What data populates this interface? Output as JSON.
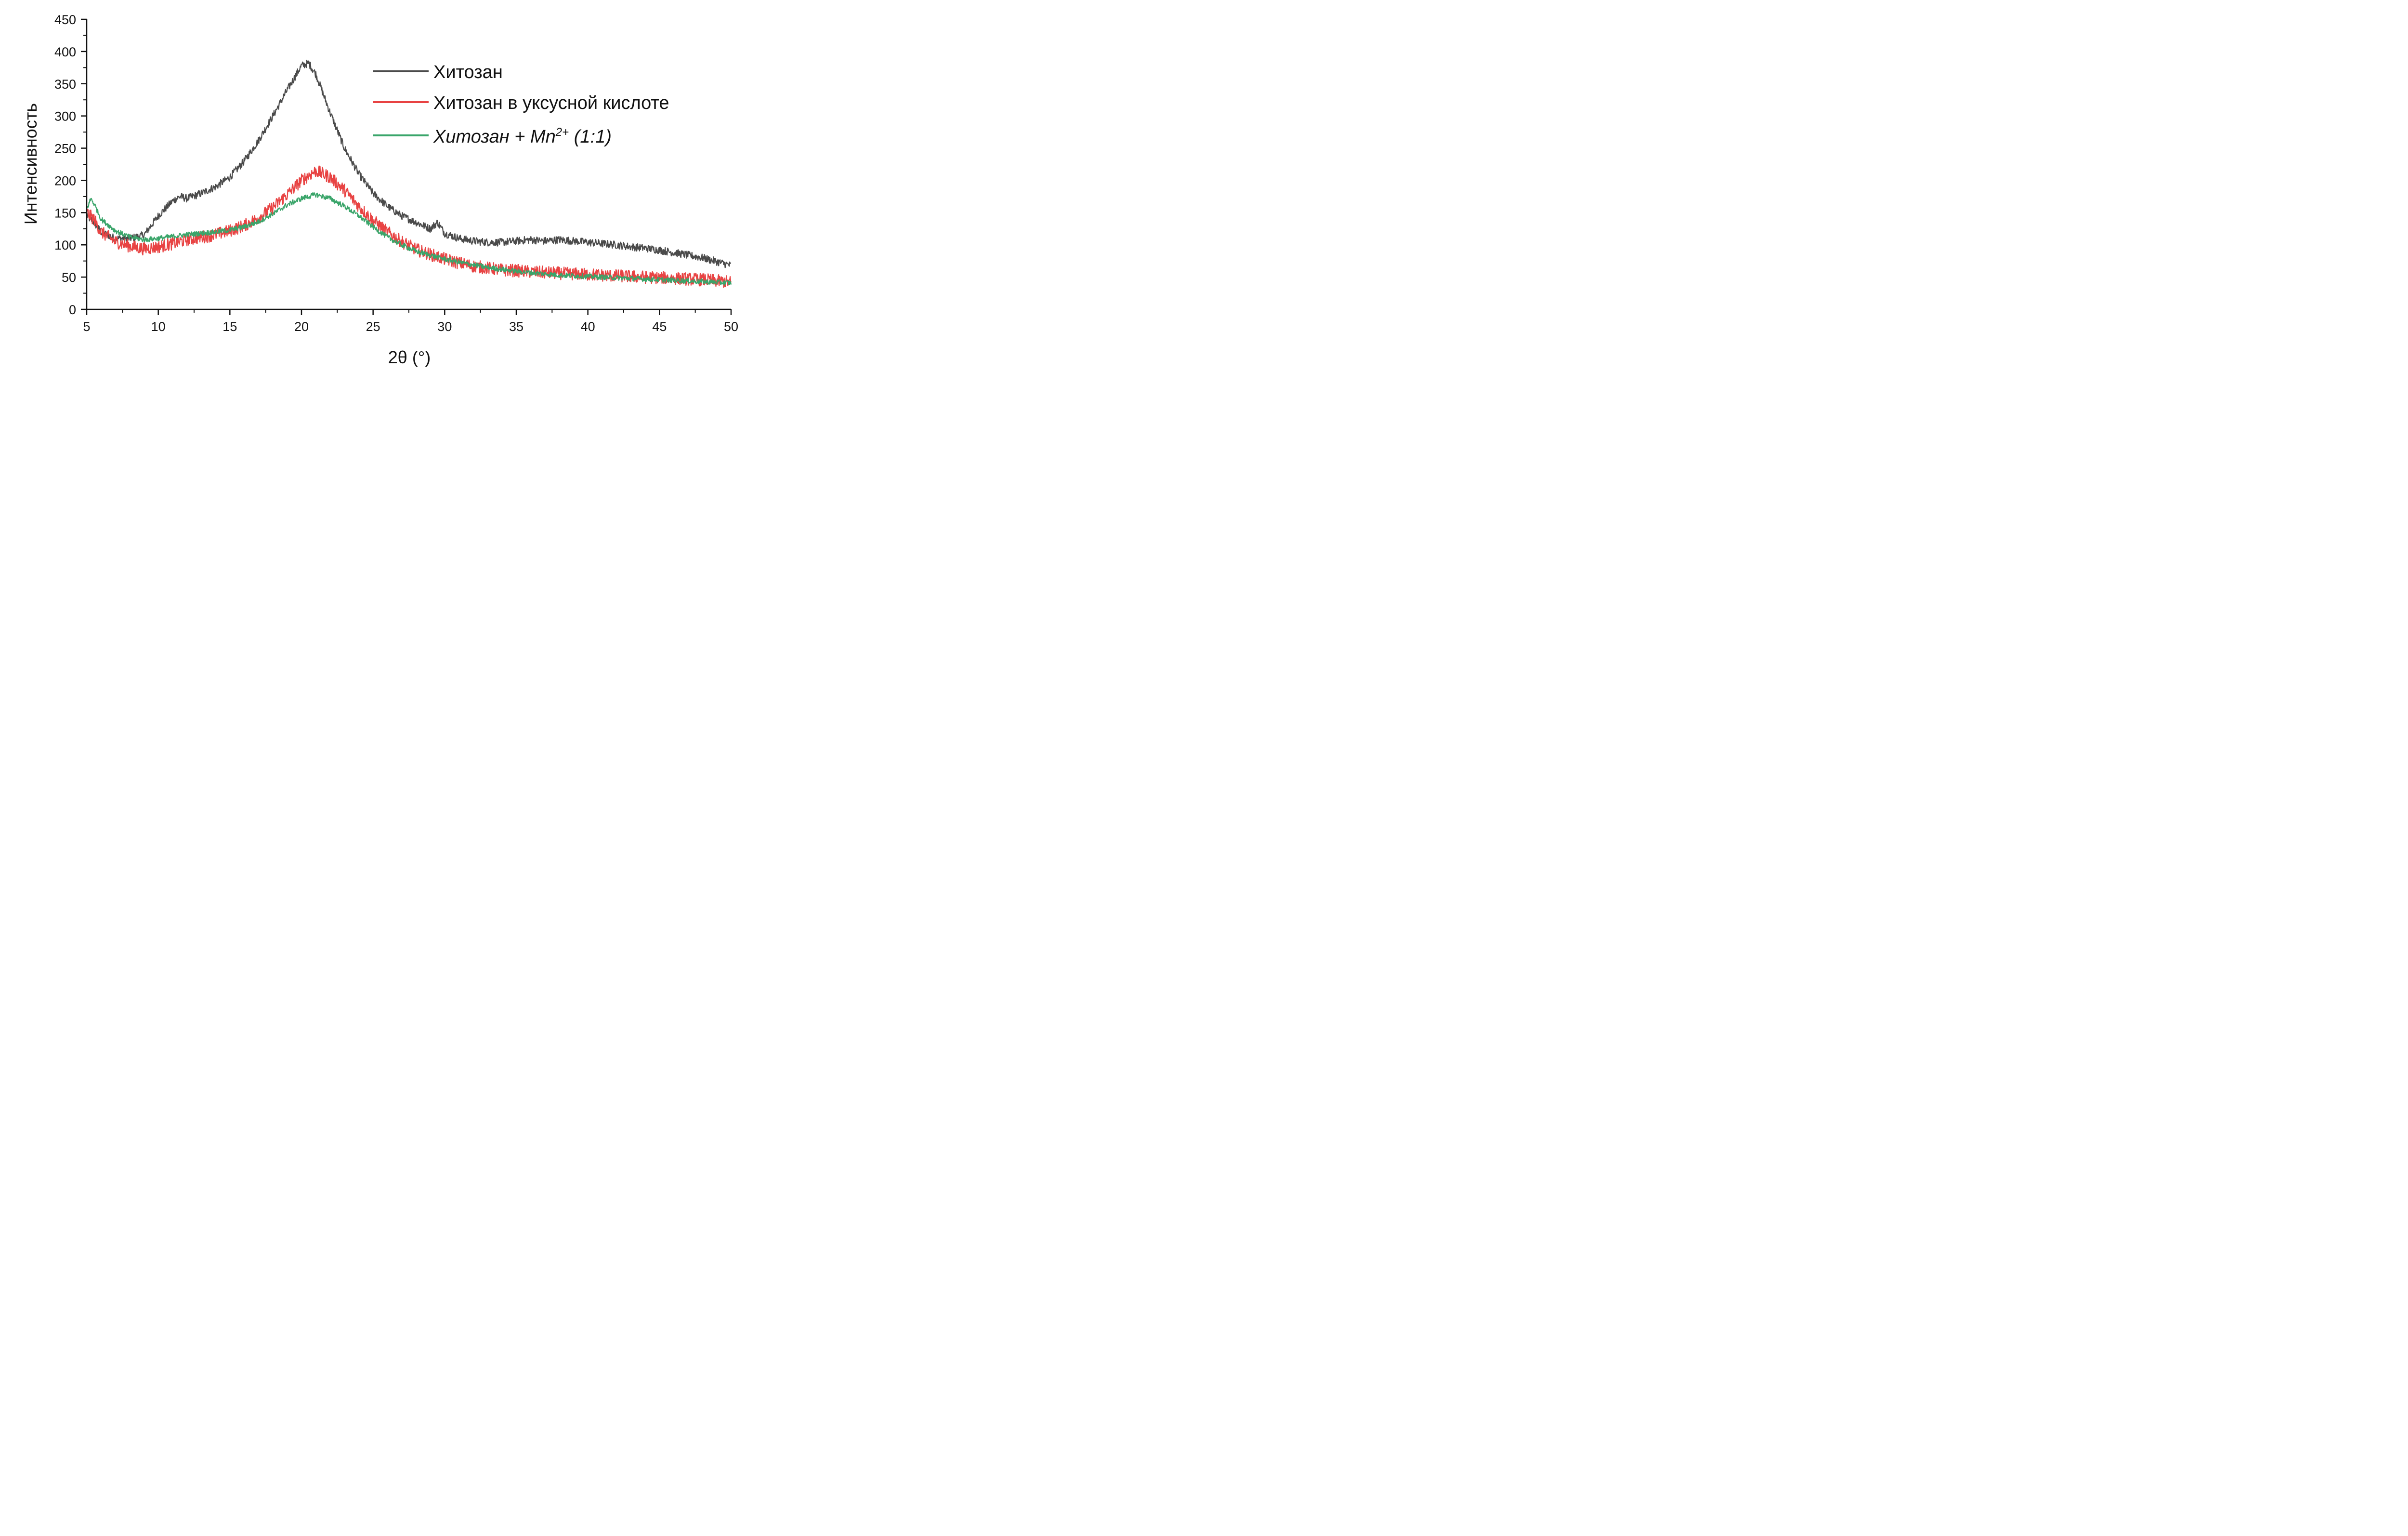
{
  "chart_data": {
    "type": "line",
    "xlabel": "2θ (°)",
    "ylabel": "Интенсивность",
    "xlim": [
      5,
      50
    ],
    "ylim": [
      0,
      450
    ],
    "xticks": [
      "5",
      "10",
      "15",
      "20",
      "25",
      "30",
      "35",
      "40",
      "45",
      "50"
    ],
    "yticks": [
      "0",
      "50",
      "100",
      "150",
      "200",
      "250",
      "300",
      "350",
      "400",
      "450"
    ],
    "grid": false,
    "legend_placement": "top-right",
    "series": [
      {
        "name": "Хитозан",
        "color": "#4a4a4a",
        "noise": 6,
        "x": [
          5,
          5.5,
          6,
          7,
          8,
          9,
          10,
          11,
          11.5,
          12,
          13,
          14,
          15,
          16,
          17,
          18,
          19,
          20,
          20.5,
          21,
          22,
          23,
          24,
          25,
          26,
          27,
          28,
          29,
          29.5,
          30,
          31,
          32,
          33,
          34,
          35,
          36,
          37,
          38,
          39,
          40,
          41,
          42,
          43,
          44,
          45,
          46,
          47,
          48,
          49,
          50
        ],
        "y": [
          145,
          135,
          120,
          110,
          110,
          115,
          145,
          168,
          175,
          172,
          180,
          190,
          205,
          230,
          262,
          300,
          340,
          378,
          382,
          365,
          305,
          250,
          210,
          180,
          160,
          145,
          135,
          125,
          135,
          118,
          110,
          106,
          104,
          104,
          106,
          108,
          106,
          108,
          106,
          104,
          102,
          100,
          97,
          95,
          92,
          88,
          84,
          80,
          74,
          68
        ]
      },
      {
        "name": "Хитозан в уксусной кислоте",
        "color": "#e84343",
        "noise": 10,
        "x": [
          5,
          5.5,
          6,
          7,
          8,
          9,
          10,
          11,
          12,
          13,
          14,
          15,
          16,
          17,
          18,
          19,
          20,
          21,
          22,
          23,
          24,
          25,
          26,
          27,
          28,
          29,
          30,
          31,
          32,
          33,
          34,
          35,
          36,
          37,
          38,
          39,
          40,
          41,
          42,
          43,
          44,
          45,
          46,
          47,
          48,
          49,
          50
        ],
        "y": [
          150,
          140,
          120,
          105,
          98,
          94,
          97,
          102,
          108,
          112,
          116,
          122,
          130,
          142,
          158,
          178,
          200,
          215,
          205,
          185,
          160,
          138,
          120,
          105,
          93,
          85,
          78,
          72,
          67,
          64,
          61,
          60,
          58,
          57,
          56,
          55,
          54,
          53,
          52,
          51,
          50,
          49,
          48,
          47,
          46,
          44,
          42
        ]
      },
      {
        "name": "Хитозан + Mn2+ (1:1)",
        "color": "#3aa56a",
        "noise": 4,
        "x": [
          5,
          5.3,
          5.6,
          6,
          7,
          8,
          9,
          10,
          11,
          12,
          13,
          14,
          15,
          16,
          17,
          18,
          19,
          20,
          21,
          22,
          23,
          24,
          25,
          26,
          27,
          28,
          29,
          30,
          31,
          32,
          33,
          34,
          35,
          36,
          37,
          38,
          39,
          40,
          41,
          42,
          43,
          44,
          45,
          46,
          47,
          48,
          49,
          50
        ],
        "y": [
          155,
          172,
          160,
          140,
          122,
          112,
          108,
          110,
          113,
          116,
          118,
          120,
          123,
          128,
          136,
          148,
          162,
          172,
          178,
          172,
          160,
          145,
          128,
          112,
          100,
          90,
          84,
          78,
          73,
          69,
          65,
          62,
          59,
          57,
          55,
          53,
          52,
          51,
          50,
          49,
          48,
          47,
          46,
          45,
          44,
          43,
          42,
          41
        ]
      }
    ]
  },
  "legend": {
    "items": [
      {
        "label": "Хитозан",
        "italic": false
      },
      {
        "label": "Хитозан в уксусной кислоте",
        "italic": false
      },
      {
        "label_prefix": "Хитозан + Mn",
        "label_sup": "2+",
        "label_suffix": " (1:1)",
        "italic": true
      }
    ]
  }
}
